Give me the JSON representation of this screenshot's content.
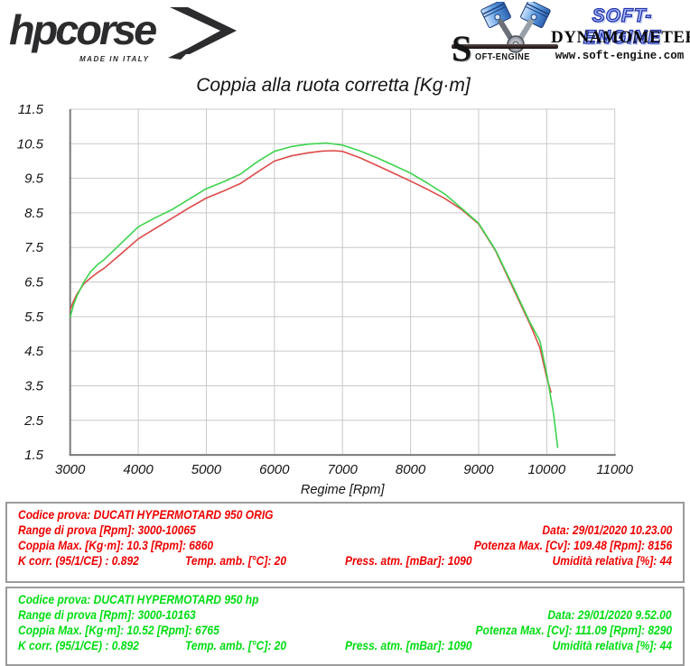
{
  "header": {
    "hpcorse": {
      "name": "hpcorse",
      "tagline": "MADE IN ITALY"
    },
    "softengine": {
      "s_letter": "S",
      "s_rest": "OFT-ENGINE",
      "brand": "SOFT-ENGINE",
      "subtitle": "DYNAMOMETERS",
      "website": "www.soft-engine.com"
    }
  },
  "chart_data": {
    "type": "line",
    "title": "Coppia alla ruota corretta [Kg·m]",
    "xlabel": "Regime [Rpm]",
    "ylabel": "",
    "xlim": [
      3000,
      11000
    ],
    "ylim": [
      1.5,
      11.5
    ],
    "xticks": [
      3000,
      4000,
      5000,
      6000,
      7000,
      8000,
      9000,
      10000,
      11000
    ],
    "yticks": [
      1.5,
      2.5,
      3.5,
      4.5,
      5.5,
      6.5,
      7.5,
      8.5,
      9.5,
      10.5,
      11.5
    ],
    "grid": true,
    "legend": "none",
    "colors": {
      "grid": "#c9c9c9",
      "axis": "#7a7a7a"
    },
    "series": [
      {
        "id": "original",
        "name": "DUCATI HYPERMOTARD 950 ORIG",
        "color": "#dd4a4a",
        "points": [
          [
            3000,
            5.7
          ],
          [
            3050,
            5.95
          ],
          [
            3100,
            6.15
          ],
          [
            3200,
            6.45
          ],
          [
            3300,
            6.62
          ],
          [
            3400,
            6.77
          ],
          [
            3500,
            6.9
          ],
          [
            3750,
            7.32
          ],
          [
            4000,
            7.75
          ],
          [
            4250,
            8.05
          ],
          [
            4500,
            8.35
          ],
          [
            4750,
            8.65
          ],
          [
            5000,
            8.93
          ],
          [
            5250,
            9.13
          ],
          [
            5500,
            9.35
          ],
          [
            5750,
            9.68
          ],
          [
            6000,
            10.0
          ],
          [
            6250,
            10.15
          ],
          [
            6500,
            10.24
          ],
          [
            6700,
            10.29
          ],
          [
            6860,
            10.3
          ],
          [
            7000,
            10.28
          ],
          [
            7250,
            10.1
          ],
          [
            7500,
            9.88
          ],
          [
            7750,
            9.65
          ],
          [
            8000,
            9.42
          ],
          [
            8250,
            9.18
          ],
          [
            8500,
            8.92
          ],
          [
            8750,
            8.6
          ],
          [
            9000,
            8.18
          ],
          [
            9250,
            7.4
          ],
          [
            9500,
            6.35
          ],
          [
            9750,
            5.3
          ],
          [
            9900,
            4.6
          ],
          [
            10000,
            3.75
          ],
          [
            10065,
            3.3
          ]
        ]
      },
      {
        "id": "hp",
        "name": "DUCATI HYPERMOTARD 950 hp",
        "color": "#3ed34e",
        "points": [
          [
            3000,
            5.48
          ],
          [
            3050,
            5.85
          ],
          [
            3100,
            6.1
          ],
          [
            3200,
            6.5
          ],
          [
            3300,
            6.8
          ],
          [
            3400,
            7.0
          ],
          [
            3500,
            7.15
          ],
          [
            3750,
            7.62
          ],
          [
            4000,
            8.1
          ],
          [
            4250,
            8.36
          ],
          [
            4500,
            8.6
          ],
          [
            4750,
            8.9
          ],
          [
            5000,
            9.2
          ],
          [
            5250,
            9.4
          ],
          [
            5500,
            9.62
          ],
          [
            5750,
            9.98
          ],
          [
            6000,
            10.28
          ],
          [
            6250,
            10.42
          ],
          [
            6500,
            10.49
          ],
          [
            6765,
            10.52
          ],
          [
            7000,
            10.46
          ],
          [
            7250,
            10.3
          ],
          [
            7500,
            10.1
          ],
          [
            7750,
            9.88
          ],
          [
            8000,
            9.65
          ],
          [
            8250,
            9.36
          ],
          [
            8500,
            9.05
          ],
          [
            8750,
            8.63
          ],
          [
            9000,
            8.2
          ],
          [
            9250,
            7.42
          ],
          [
            9500,
            6.4
          ],
          [
            9750,
            5.35
          ],
          [
            9900,
            4.8
          ],
          [
            10000,
            3.85
          ],
          [
            10100,
            2.7
          ],
          [
            10163,
            1.7
          ]
        ]
      }
    ]
  },
  "results": {
    "original": {
      "codice": "Codice prova: DUCATI HYPERMOTARD 950 ORIG",
      "range": "Range di prova [Rpm]: 3000-10065",
      "data": "Data: 29/01/2020  10.23.00",
      "coppia_max": "Coppia Max. [Kg·m]: 10.3  [Rpm]: 6860",
      "potenza_max": "Potenza Max. [Cv]: 109.48  [Rpm]: 8156",
      "k_corr": "K corr. (95/1/CE) : 0.892",
      "temp": "Temp. amb. [°C]: 20",
      "press": "Press. atm. [mBar]: 1090",
      "umidita": "Umidità relativa [%]: 44"
    },
    "hp": {
      "codice": "Codice prova: DUCATI HYPERMOTARD 950 hp",
      "range": "Range di prova [Rpm]: 3000-10163",
      "data": "Data: 29/01/2020  9.52.00",
      "coppia_max": "Coppia Max. [Kg·m]: 10.52  [Rpm]: 6765",
      "potenza_max": "Potenza Max. [Cv]: 111.09  [Rpm]: 8290",
      "k_corr": "K corr. (95/1/CE) : 0.892",
      "temp": "Temp. amb. [°C]: 20",
      "press": "Press. atm. [mBar]: 1090",
      "umidita": "Umidità relativa [%]: 44"
    }
  }
}
